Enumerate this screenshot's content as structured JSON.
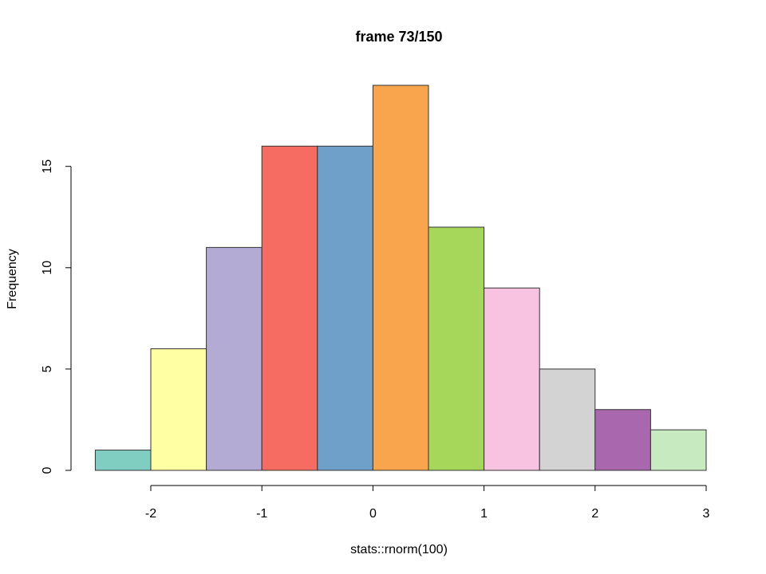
{
  "chart_data": {
    "type": "bar",
    "title": "frame 73/150",
    "xlabel": "stats::rnorm(100)",
    "ylabel": "Frequency",
    "bins": [
      {
        "x0": -2.5,
        "x1": -2.0,
        "count": 1,
        "color": "#80CDC1"
      },
      {
        "x0": -2.0,
        "x1": -1.5,
        "count": 6,
        "color": "#FFFFA3"
      },
      {
        "x0": -1.5,
        "x1": -1.0,
        "count": 11,
        "color": "#B3ABD4"
      },
      {
        "x0": -1.0,
        "x1": -0.5,
        "count": 16,
        "color": "#F76C62"
      },
      {
        "x0": -0.5,
        "x1": 0.0,
        "count": 16,
        "color": "#6FA0C9"
      },
      {
        "x0": 0.0,
        "x1": 0.5,
        "count": 19,
        "color": "#F9A54D"
      },
      {
        "x0": 0.5,
        "x1": 1.0,
        "count": 12,
        "color": "#A6D65A"
      },
      {
        "x0": 1.0,
        "x1": 1.5,
        "count": 9,
        "color": "#F7C3E0"
      },
      {
        "x0": 1.5,
        "x1": 2.0,
        "count": 5,
        "color": "#D3D3D3"
      },
      {
        "x0": 2.0,
        "x1": 2.5,
        "count": 3,
        "color": "#A968AE"
      },
      {
        "x0": 2.5,
        "x1": 3.0,
        "count": 2,
        "color": "#C7EAC0"
      }
    ],
    "x_ticks": [
      -2,
      -1,
      0,
      1,
      2,
      3
    ],
    "x_tick_labels": [
      "-2",
      "-1",
      "0",
      "1",
      "2",
      "3"
    ],
    "y_ticks": [
      0,
      5,
      10,
      15
    ],
    "y_tick_labels": [
      "0",
      "5",
      "10",
      "15"
    ],
    "xlim": [
      -2.5,
      3.0
    ],
    "ylim": [
      0,
      19
    ],
    "grid": false,
    "legend": "none"
  }
}
